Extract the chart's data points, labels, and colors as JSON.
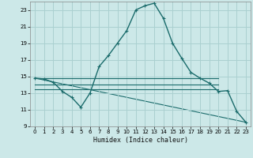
{
  "xlabel": "Humidex (Indice chaleur)",
  "bg_color": "#cce8e8",
  "grid_color": "#aad0d0",
  "line_color": "#1a6b6b",
  "xlim": [
    -0.5,
    23.5
  ],
  "ylim": [
    9,
    24
  ],
  "xticks": [
    0,
    1,
    2,
    3,
    4,
    5,
    6,
    7,
    8,
    9,
    10,
    11,
    12,
    13,
    14,
    15,
    16,
    17,
    18,
    19,
    20,
    21,
    22,
    23
  ],
  "yticks": [
    9,
    11,
    13,
    15,
    17,
    19,
    21,
    23
  ],
  "main_series": [
    [
      0,
      14.8
    ],
    [
      1,
      14.7
    ],
    [
      2,
      14.3
    ],
    [
      3,
      13.2
    ],
    [
      4,
      12.5
    ],
    [
      5,
      11.3
    ],
    [
      6,
      13.0
    ],
    [
      7,
      16.2
    ],
    [
      8,
      17.5
    ],
    [
      9,
      19.0
    ],
    [
      10,
      20.5
    ],
    [
      11,
      23.0
    ],
    [
      12,
      23.5
    ],
    [
      13,
      23.8
    ],
    [
      14,
      22.0
    ],
    [
      15,
      19.0
    ],
    [
      16,
      17.2
    ],
    [
      17,
      15.5
    ],
    [
      18,
      14.8
    ],
    [
      19,
      14.2
    ],
    [
      20,
      13.2
    ],
    [
      21,
      13.3
    ],
    [
      22,
      10.8
    ],
    [
      23,
      9.5
    ]
  ],
  "flat_line1": [
    [
      0,
      14.8
    ],
    [
      20,
      14.8
    ]
  ],
  "flat_line2": [
    [
      0,
      14.0
    ],
    [
      20,
      14.0
    ]
  ],
  "flat_line3": [
    [
      0,
      13.5
    ],
    [
      20,
      13.5
    ]
  ],
  "diag_line": [
    [
      0,
      14.8
    ],
    [
      23,
      9.5
    ]
  ],
  "xlabel_fontsize": 6.0,
  "tick_fontsize": 5.0
}
